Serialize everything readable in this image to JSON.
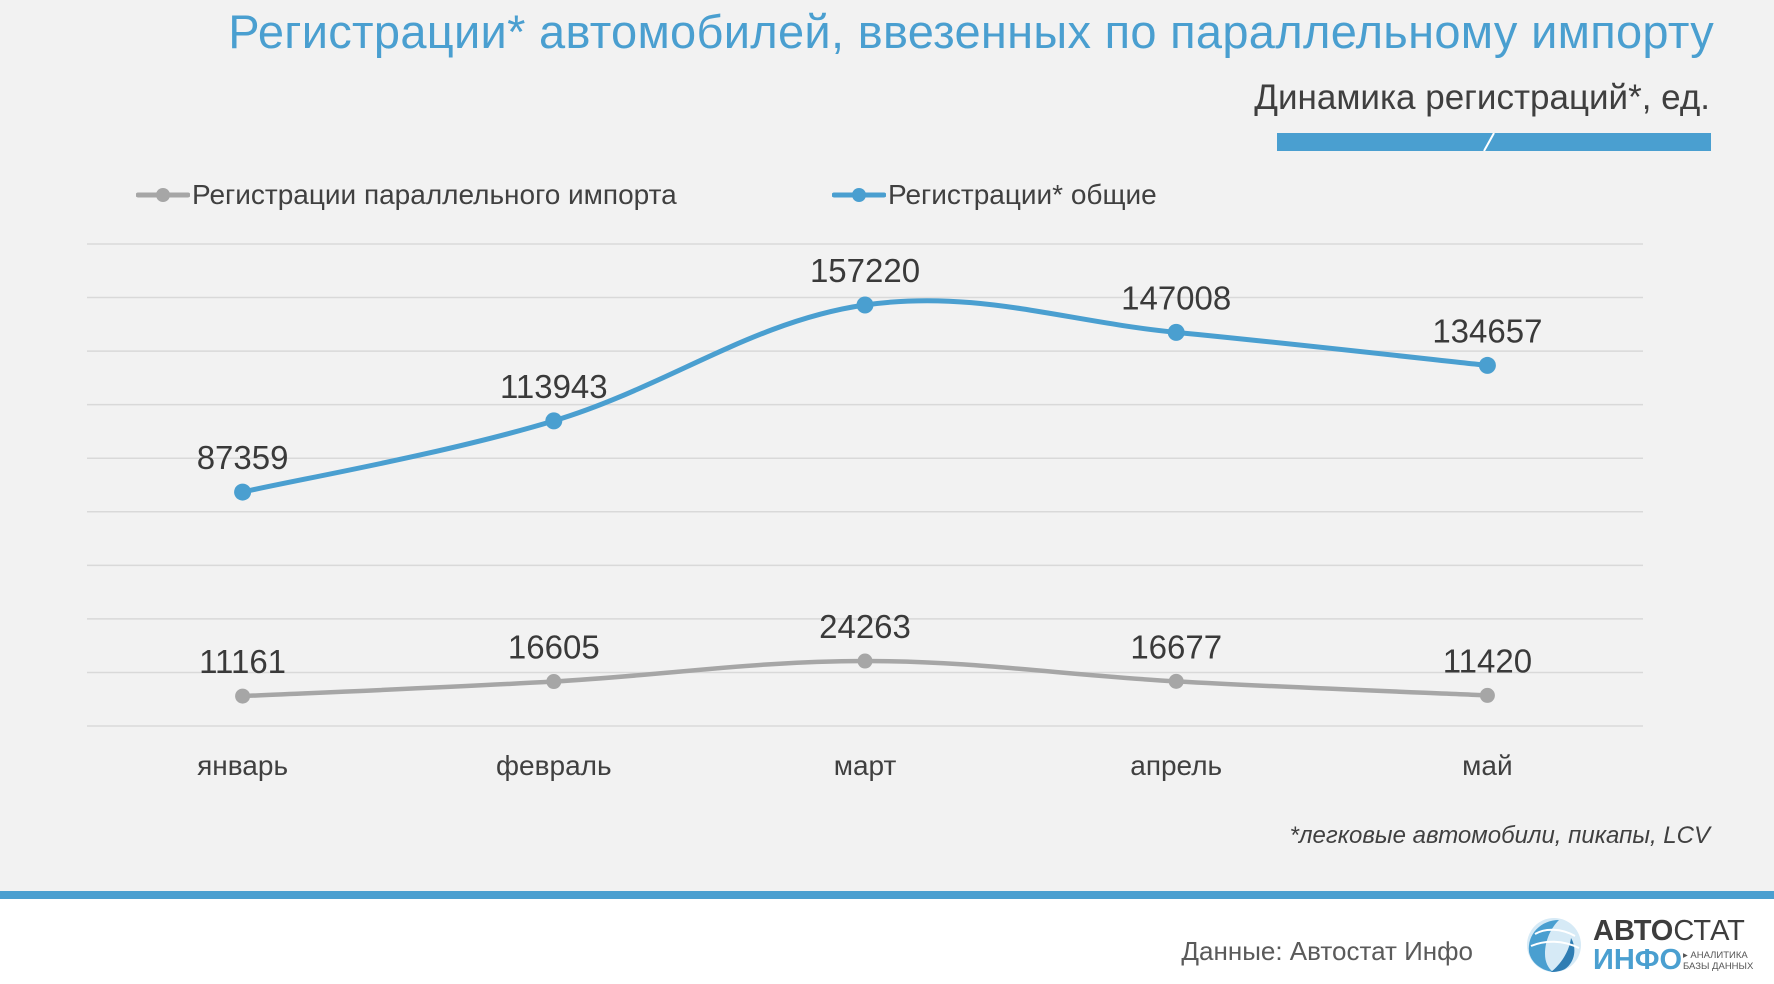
{
  "header": {
    "title": "Регистрации* автомобилей, ввезенных по параллельному импорту",
    "subtitle": "Динамика регистраций*, ед."
  },
  "colors": {
    "accent": "#4a9fd0",
    "series_parallel": "#a6a6a6",
    "series_total": "#4a9fd0",
    "gridline": "#d9d9d9",
    "text_dark": "#404040"
  },
  "chart_data": {
    "type": "line",
    "title": "",
    "xlabel": "",
    "ylabel": "",
    "categories": [
      "январь",
      "февраль",
      "март",
      "апрель",
      "май"
    ],
    "series": [
      {
        "name": "Регистрации параллельного импорта",
        "values": [
          11161,
          16605,
          24263,
          16677,
          11420
        ]
      },
      {
        "name": "Регистрации* общие",
        "values": [
          87359,
          113943,
          157220,
          147008,
          134657
        ]
      }
    ],
    "ylim": [
      0,
      180000
    ],
    "y_axis_visible": false,
    "grid": true,
    "data_labels": true,
    "smooth_lines": true,
    "legend_position": "top-left"
  },
  "footnote": "*легковые автомобили, пикапы, LCV",
  "footer": {
    "source": "Данные: Автостат Инфо",
    "logo": {
      "line1_bold": "АВТО",
      "line1_light": "СТАТ",
      "line2": "ИНФО",
      "tagline_1": "▸ АНАЛИТИКА",
      "tagline_2": "БАЗЫ ДАННЫХ"
    }
  }
}
